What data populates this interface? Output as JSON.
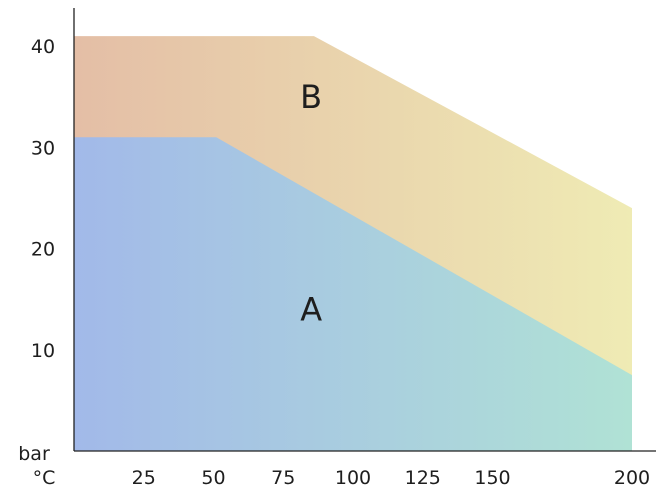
{
  "chart_data": {
    "type": "area",
    "xlabel": "°C",
    "ylabel": "bar",
    "xlim": [
      0,
      200
    ],
    "ylim": [
      0,
      47
    ],
    "x_ticks": [
      25,
      50,
      75,
      100,
      125,
      150,
      200
    ],
    "x_tick_labels": [
      "25",
      "50",
      "75",
      "100",
      "125",
      "150",
      "200"
    ],
    "y_ticks": [
      10,
      20,
      30,
      40
    ],
    "y_tick_labels": [
      "10",
      "20",
      "30",
      "40"
    ],
    "grid": false,
    "series": [
      {
        "name": "A",
        "x": [
          0,
          51,
          200
        ],
        "y": [
          31,
          31,
          7.5
        ]
      },
      {
        "name": "B",
        "x": [
          0,
          86,
          200
        ],
        "y": [
          41,
          41,
          24
        ]
      }
    ],
    "annotations": [
      {
        "text": "B",
        "x": 85,
        "y": 35
      },
      {
        "text": "A",
        "x": 85,
        "y": 14
      }
    ],
    "colors": {
      "A_start": "#a2b9e9",
      "A_end": "#b0e2d5",
      "B_start": "#e4bea6",
      "B_end": "#efebb4",
      "axis": "#222222",
      "text": "#1e1e1e"
    }
  }
}
